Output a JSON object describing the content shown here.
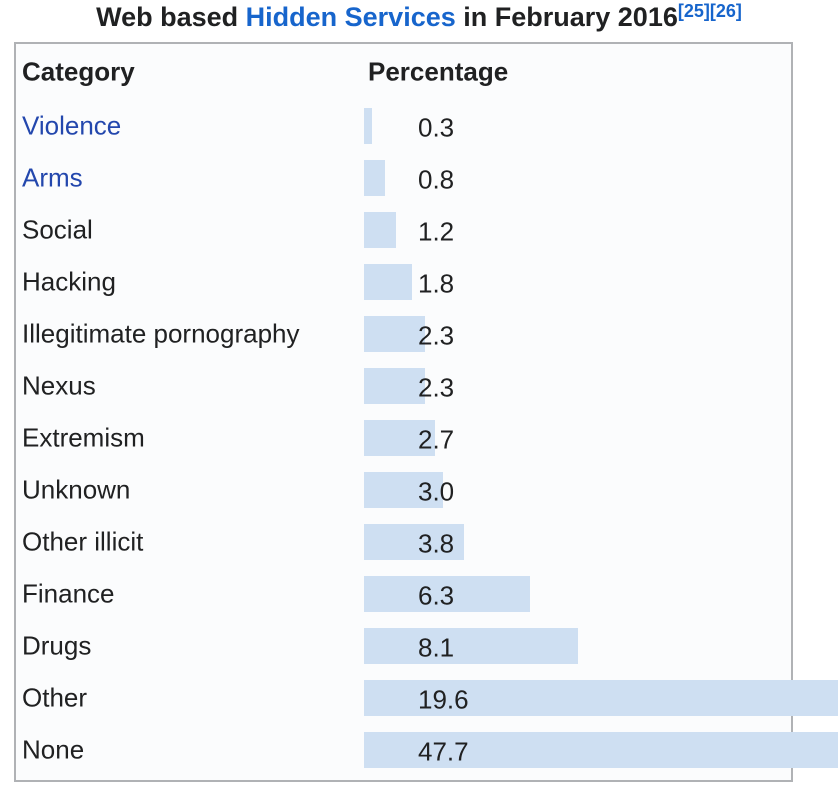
{
  "title": {
    "prefix": "Web based ",
    "link_text": "Hidden Services",
    "suffix": " in February 2016",
    "refs": [
      "[25]",
      "[26]"
    ]
  },
  "colors": {
    "bar": "#cedff2",
    "row_link": "#2347ad",
    "title_link": "#1765cc",
    "text": "#202122",
    "table_border": "#b0b2b5"
  },
  "chart_data": {
    "type": "bar",
    "orientation": "horizontal",
    "title": "Web based Hidden Services in February 2016",
    "columns": [
      "Category",
      "Percentage"
    ],
    "categories": [
      "Violence",
      "Arms",
      "Social",
      "Hacking",
      "Illegitimate pornography",
      "Nexus",
      "Extremism",
      "Unknown",
      "Other illicit",
      "Finance",
      "Drugs",
      "Other",
      "None"
    ],
    "values": [
      0.3,
      0.8,
      1.2,
      1.8,
      2.3,
      2.3,
      2.7,
      3.0,
      3.8,
      6.3,
      8.1,
      19.6,
      47.7
    ],
    "unit": "percent",
    "legend": "none",
    "grid": false,
    "rows": [
      {
        "category": "Violence",
        "value": 0.3,
        "value_label": "0.3",
        "link": true
      },
      {
        "category": "Arms",
        "value": 0.8,
        "value_label": "0.8",
        "link": true
      },
      {
        "category": "Social",
        "value": 1.2,
        "value_label": "1.2",
        "link": false
      },
      {
        "category": "Hacking",
        "value": 1.8,
        "value_label": "1.8",
        "link": false
      },
      {
        "category": "Illegitimate pornography",
        "value": 2.3,
        "value_label": "2.3",
        "link": false
      },
      {
        "category": "Nexus",
        "value": 2.3,
        "value_label": "2.3",
        "link": false
      },
      {
        "category": "Extremism",
        "value": 2.7,
        "value_label": "2.7",
        "link": false
      },
      {
        "category": "Unknown",
        "value": 3.0,
        "value_label": "3.0",
        "link": false
      },
      {
        "category": "Other illicit",
        "value": 3.8,
        "value_label": "3.8",
        "link": false
      },
      {
        "category": "Finance",
        "value": 6.3,
        "value_label": "6.3",
        "link": false
      },
      {
        "category": "Drugs",
        "value": 8.1,
        "value_label": "8.1",
        "link": false
      },
      {
        "category": "Other",
        "value": 19.6,
        "value_label": "19.6",
        "link": false
      },
      {
        "category": "None",
        "value": 47.7,
        "value_label": "47.7",
        "link": false
      }
    ]
  }
}
